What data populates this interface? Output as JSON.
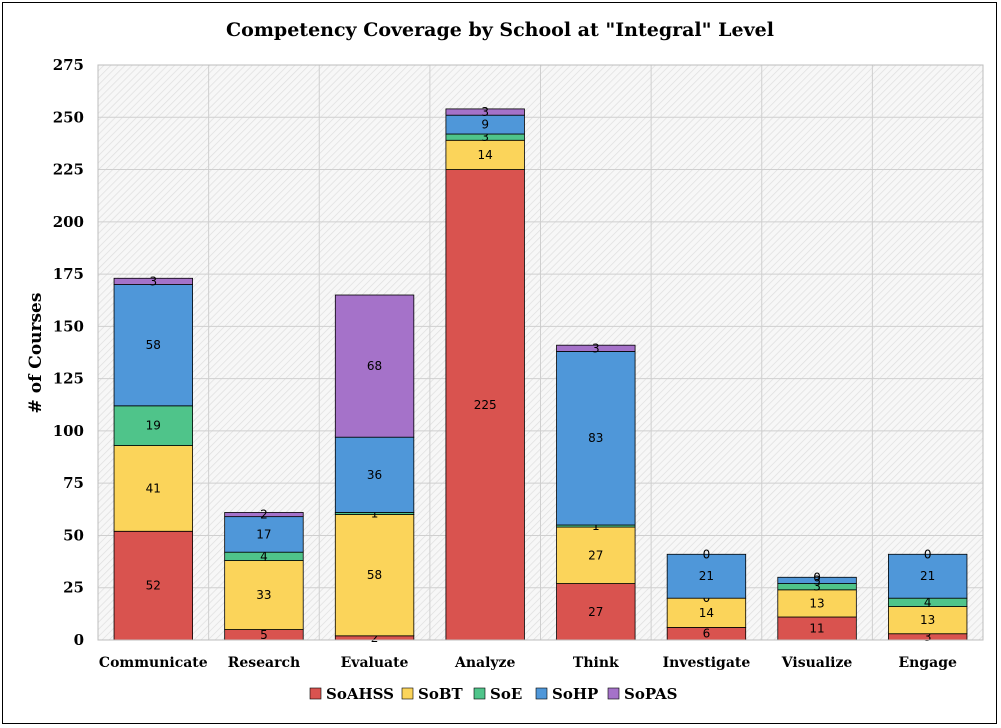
{
  "chart_data": {
    "type": "bar",
    "stacked": true,
    "title": "Competency Coverage by School at \"Integral\" Level",
    "xlabel": "",
    "ylabel": "# of Courses",
    "ylim": [
      0,
      275
    ],
    "yticks": [
      0,
      25,
      50,
      75,
      100,
      125,
      150,
      175,
      200,
      225,
      250,
      275
    ],
    "grid": true,
    "legend_position": "bottom",
    "categories": [
      "Communicate",
      "Research",
      "Evaluate",
      "Analyze",
      "Think",
      "Investigate",
      "Visualize",
      "Engage"
    ],
    "series": [
      {
        "name": "SoAHSS",
        "color": "#d9534f",
        "values": [
          52,
          5,
          2,
          225,
          27,
          6,
          11,
          3
        ]
      },
      {
        "name": "SoBT",
        "color": "#fbd45a",
        "values": [
          41,
          33,
          58,
          14,
          27,
          14,
          13,
          13
        ]
      },
      {
        "name": "SoE",
        "color": "#4fc48a",
        "values": [
          19,
          4,
          1,
          3,
          1,
          0,
          3,
          4
        ]
      },
      {
        "name": "SoHP",
        "color": "#4f97d9",
        "values": [
          58,
          17,
          36,
          9,
          83,
          21,
          3,
          21
        ]
      },
      {
        "name": "SoPAS",
        "color": "#a572c9",
        "values": [
          3,
          2,
          68,
          3,
          3,
          0,
          0,
          0
        ]
      }
    ]
  }
}
